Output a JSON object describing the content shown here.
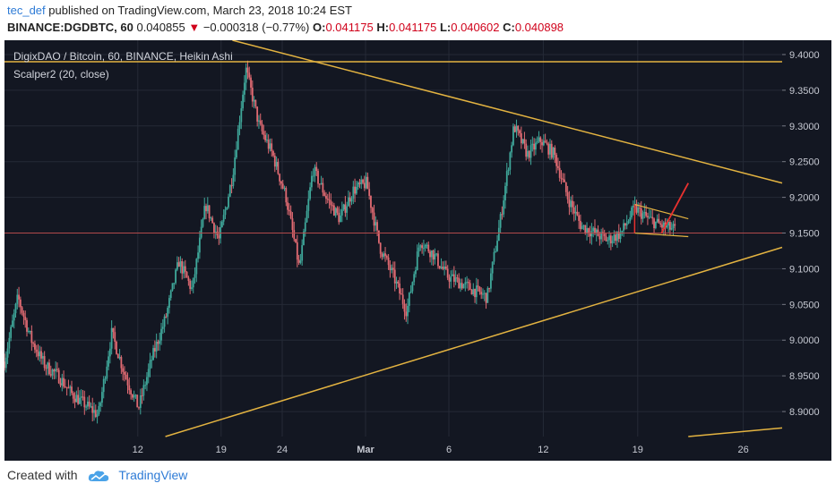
{
  "header": {
    "user": "tec_def",
    "published_text": "published on TradingView.com, March 23, 2018 10:24 EST",
    "symbol": "BINANCE:DGDBTC, 60",
    "last": "0.040855",
    "change": "−0.000318 (−0.77%)",
    "o_label": "O:",
    "o_value": "0.041175",
    "h_label": "H:",
    "h_value": "0.041175",
    "l_label": "L:",
    "l_value": "0.040602",
    "c_label": "C:",
    "c_value": "0.040898"
  },
  "footer": {
    "created_with": "Created with",
    "brand": "TradingView"
  },
  "colors": {
    "background": "#131722",
    "up": "#3fa79a",
    "down": "#e06a72",
    "trendline": "#e3b341",
    "flag": "#e8312f",
    "hline": "#b24a4a"
  },
  "chart_data": {
    "type": "candlestick",
    "title": "DigixDAO / Bitcoin, 60, BINANCE, Heikin Ashi",
    "indicator": "Scalper2 (20, close)",
    "x_ticks": [
      "12",
      "19",
      "24",
      "Mar",
      "6",
      "12",
      "19",
      "26"
    ],
    "y_ticks": [
      "9.4000",
      "9.3500",
      "9.3000",
      "9.2500",
      "9.2000",
      "9.1500",
      "9.1000",
      "9.0500",
      "9.0000",
      "8.9500",
      "8.9000"
    ],
    "ylim": [
      8.865,
      9.42
    ],
    "price_path": [
      [
        0,
        8.97
      ],
      [
        1,
        9.06
      ],
      [
        2,
        9.0
      ],
      [
        3,
        8.965
      ],
      [
        4,
        8.95
      ],
      [
        5,
        8.925
      ],
      [
        6,
        8.91
      ],
      [
        7,
        8.895
      ],
      [
        8,
        9.01
      ],
      [
        9,
        8.95
      ],
      [
        10,
        8.905
      ],
      [
        11,
        8.975
      ],
      [
        12,
        9.03
      ],
      [
        13,
        9.11
      ],
      [
        14,
        9.07
      ],
      [
        15,
        9.19
      ],
      [
        16,
        9.14
      ],
      [
        17,
        9.23
      ],
      [
        18,
        9.38
      ],
      [
        19,
        9.3
      ],
      [
        20,
        9.26
      ],
      [
        21,
        9.2
      ],
      [
        22,
        9.1
      ],
      [
        23,
        9.24
      ],
      [
        24,
        9.2
      ],
      [
        25,
        9.17
      ],
      [
        26,
        9.21
      ],
      [
        27,
        9.22
      ],
      [
        28,
        9.13
      ],
      [
        29,
        9.09
      ],
      [
        30,
        9.04
      ],
      [
        31,
        9.14
      ],
      [
        32,
        9.12
      ],
      [
        33,
        9.09
      ],
      [
        34,
        9.08
      ],
      [
        35,
        9.07
      ],
      [
        36,
        9.06
      ],
      [
        37,
        9.17
      ],
      [
        38,
        9.3
      ],
      [
        39,
        9.26
      ],
      [
        40,
        9.28
      ],
      [
        41,
        9.26
      ],
      [
        42,
        9.2
      ],
      [
        43,
        9.16
      ],
      [
        44,
        9.15
      ],
      [
        45,
        9.14
      ],
      [
        46,
        9.15
      ],
      [
        47,
        9.185
      ],
      [
        48,
        9.17
      ],
      [
        49,
        9.16
      ],
      [
        50,
        9.155
      ]
    ],
    "annotations": {
      "horizontal_resistance": 9.39,
      "horizontal_red_line": 9.15,
      "upper_trendline": [
        [
          17,
          9.42
        ],
        [
          58,
          9.22
        ]
      ],
      "lower_trendline": [
        [
          12,
          8.865
        ],
        [
          58,
          9.13
        ]
      ],
      "bottom_trendline": [
        [
          51,
          8.865
        ],
        [
          58,
          8.877
        ]
      ],
      "flag_upper": [
        [
          47,
          9.19
        ],
        [
          51,
          9.17
        ]
      ],
      "flag_lower": [
        [
          47,
          9.15
        ],
        [
          51,
          9.145
        ]
      ],
      "flag_arrow": [
        [
          49,
          9.15
        ],
        [
          51,
          9.22
        ]
      ]
    }
  }
}
